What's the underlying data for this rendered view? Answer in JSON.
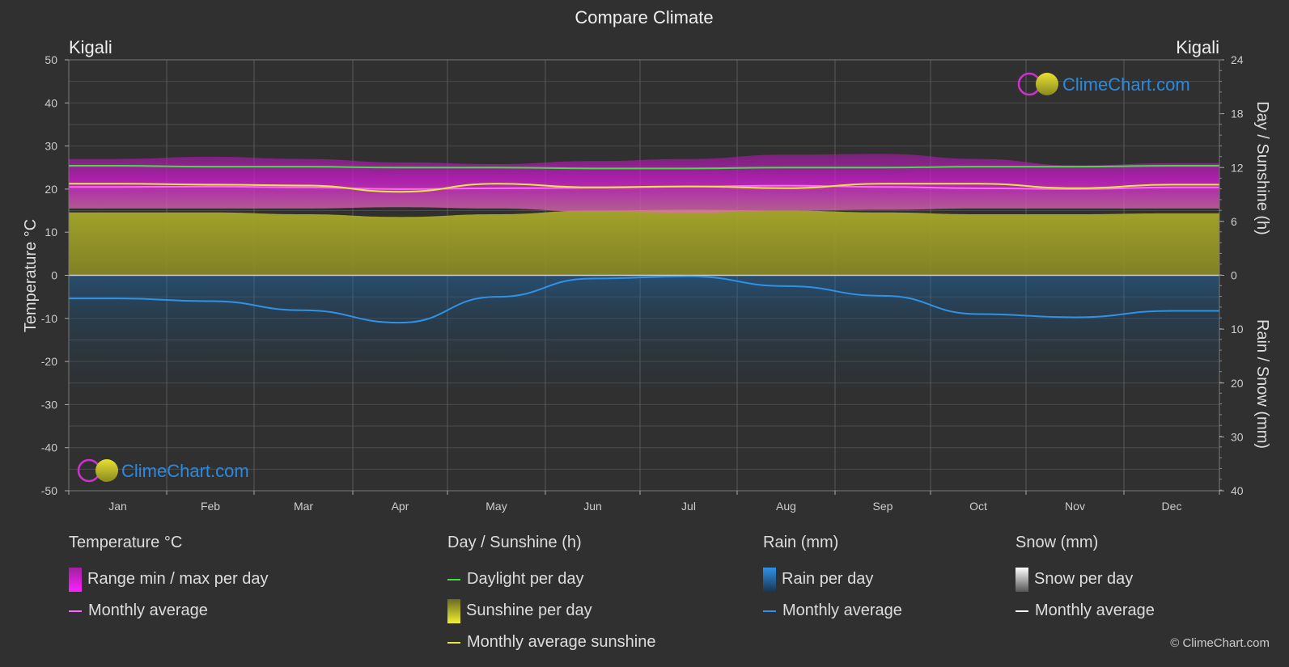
{
  "title": "Compare Climate",
  "location_left": "Kigali",
  "location_right": "Kigali",
  "logo_text": "ClimeChart.com",
  "copyright": "© ClimeChart.com",
  "colors": {
    "background": "#303030",
    "temp_range": "#d81ad8",
    "temp_avg": "#ff66ff",
    "daylight": "#44dd44",
    "sunshine": "#b5b52a",
    "sunshine_avg": "#e8e840",
    "rain": "#1f6fb5",
    "rain_avg": "#2e92e8",
    "snow_avg": "#ffffff",
    "logo_blue": "#2a8ae0"
  },
  "chart_data": {
    "type": "area",
    "title": "Compare Climate",
    "categories": [
      "Jan",
      "Feb",
      "Mar",
      "Apr",
      "May",
      "Jun",
      "Jul",
      "Aug",
      "Sep",
      "Oct",
      "Nov",
      "Dec"
    ],
    "left_axis": {
      "label": "Temperature °C",
      "ticks": [
        50,
        40,
        30,
        20,
        10,
        0,
        -10,
        -20,
        -30,
        -40,
        -50
      ],
      "range": [
        -50,
        50
      ]
    },
    "right_axis_top": {
      "label": "Day / Sunshine (h)",
      "ticks": [
        24,
        18,
        12,
        6,
        0
      ],
      "range": [
        0,
        24
      ]
    },
    "right_axis_bottom": {
      "label": "Rain / Snow (mm)",
      "ticks": [
        0,
        10,
        20,
        30,
        40
      ],
      "range": [
        0,
        40
      ]
    },
    "series": [
      {
        "name": "Daylight per day",
        "unit": "h",
        "values": [
          12.2,
          12.1,
          12.1,
          12.0,
          12.0,
          11.9,
          11.9,
          12.0,
          12.0,
          12.1,
          12.1,
          12.2
        ]
      },
      {
        "name": "Monthly average sunshine",
        "unit": "h",
        "values": [
          10.2,
          10.1,
          10.0,
          9.3,
          10.2,
          9.8,
          9.9,
          9.7,
          10.2,
          10.2,
          9.7,
          10.1
        ]
      },
      {
        "name": "Temperature monthly average",
        "unit": "°C",
        "values": [
          20.5,
          20.6,
          20.4,
          20.0,
          20.2,
          20.3,
          20.6,
          20.8,
          20.5,
          20.2,
          20.0,
          20.4
        ]
      },
      {
        "name": "Temperature range max",
        "unit": "°C",
        "values": [
          27.0,
          27.5,
          27.0,
          26.2,
          25.8,
          26.5,
          27.0,
          28.0,
          28.2,
          27.0,
          25.5,
          26.0
        ]
      },
      {
        "name": "Temperature range min",
        "unit": "°C",
        "values": [
          15.5,
          15.5,
          15.5,
          15.8,
          15.5,
          14.8,
          14.5,
          15.0,
          15.2,
          15.5,
          15.5,
          15.5
        ]
      },
      {
        "name": "Sunshine per day",
        "unit": "h",
        "values": [
          7.0,
          7.0,
          6.8,
          6.5,
          6.8,
          7.2,
          7.3,
          7.2,
          7.0,
          6.8,
          6.8,
          6.9
        ]
      },
      {
        "name": "Rain monthly average",
        "unit": "mm",
        "values": [
          4.3,
          4.8,
          6.5,
          8.8,
          4.0,
          0.6,
          0.2,
          2.0,
          3.8,
          7.2,
          7.8,
          6.6
        ]
      }
    ],
    "legend": {
      "groups": [
        {
          "title": "Temperature °C",
          "items": [
            "Range min / max per day",
            "Monthly average"
          ]
        },
        {
          "title": "Day / Sunshine (h)",
          "items": [
            "Daylight per day",
            "Sunshine per day",
            "Monthly average sunshine"
          ]
        },
        {
          "title": "Rain (mm)",
          "items": [
            "Rain per day",
            "Monthly average"
          ]
        },
        {
          "title": "Snow (mm)",
          "items": [
            "Snow per day",
            "Monthly average"
          ]
        }
      ]
    },
    "grid": true,
    "legend_position": "bottom"
  }
}
